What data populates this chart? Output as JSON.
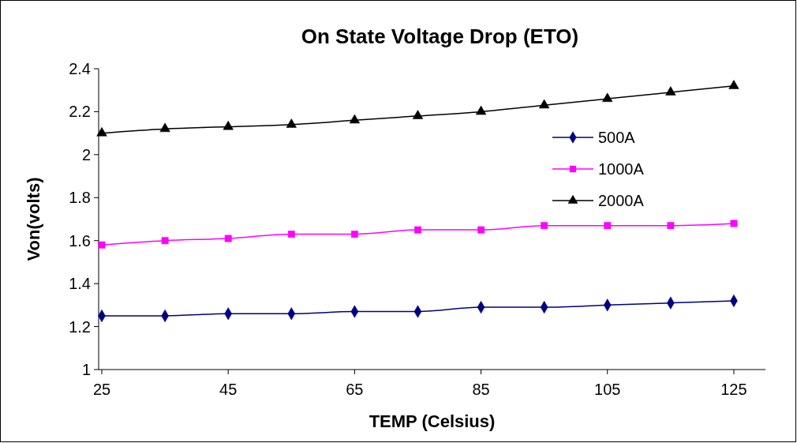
{
  "chart_data": {
    "type": "line",
    "title": "On State Voltage Drop (ETO)",
    "xlabel": "TEMP (Celsius)",
    "ylabel": "Von(volts)",
    "x": [
      25,
      35,
      45,
      55,
      65,
      75,
      85,
      95,
      105,
      115,
      125
    ],
    "xlim": [
      24.5,
      130
    ],
    "xticks": [
      25,
      45,
      65,
      85,
      105,
      125
    ],
    "ylim": [
      1,
      2.4
    ],
    "yticks": [
      1,
      1.2,
      1.4,
      1.6,
      1.8,
      2,
      2.2,
      2.4
    ],
    "grid": false,
    "legend": "top right",
    "series": [
      {
        "name": "500A",
        "color": "#000080",
        "marker": "diamond",
        "values": [
          1.25,
          1.25,
          1.26,
          1.26,
          1.27,
          1.27,
          1.29,
          1.29,
          1.3,
          1.31,
          1.32
        ]
      },
      {
        "name": "1000A",
        "color": "#ff00ff",
        "marker": "square",
        "values": [
          1.58,
          1.6,
          1.61,
          1.63,
          1.63,
          1.65,
          1.65,
          1.67,
          1.67,
          1.67,
          1.68
        ]
      },
      {
        "name": "2000A",
        "color": "#000000",
        "marker": "triangle",
        "values": [
          2.1,
          2.12,
          2.13,
          2.14,
          2.16,
          2.18,
          2.2,
          2.23,
          2.26,
          2.29,
          2.32
        ]
      }
    ]
  }
}
